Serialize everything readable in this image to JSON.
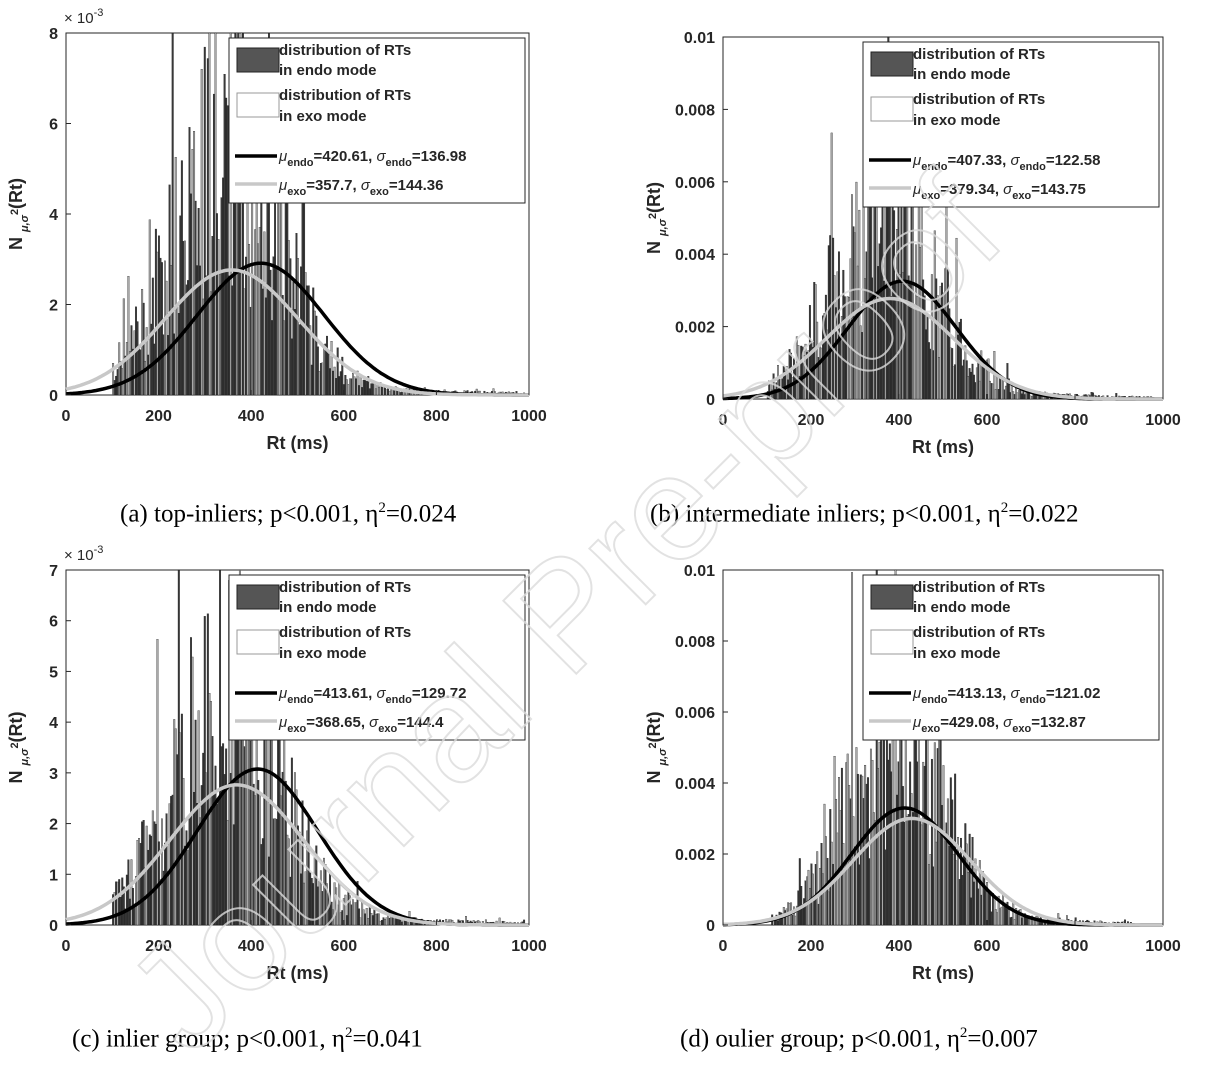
{
  "watermark": "Journal Pre-proof",
  "chart_data": [
    {
      "type": "bar",
      "panel_id": "a",
      "caption": {
        "prefix": "(a) top-inliers; p<0.001, η",
        "sup": "2",
        "suffix": "=0.024"
      },
      "xlabel": "Rt (ms)",
      "ylabel": "N",
      "ylabel_sub": "μ,σ",
      "ylabel_sup": "2",
      "ylabel_tail": "(Rt)",
      "xlim": [
        0,
        1000
      ],
      "ylim": [
        0,
        0.008
      ],
      "xticks": [
        0,
        200,
        400,
        600,
        800,
        1000
      ],
      "yticks": [
        0,
        0.002,
        0.004,
        0.006,
        0.008
      ],
      "ytick_labels": [
        "0",
        "2",
        "4",
        "6",
        "8"
      ],
      "y_exponent": "× 10",
      "y_exponent_power": "-3",
      "legend": [
        "distribution of RTs",
        "in endo mode",
        "distribution of RTs",
        "in exo mode",
        "=420.61,",
        "=136.98",
        "=357.7,",
        "=144.36"
      ],
      "legend_names": {
        "mu": "μ",
        "sigma": "σ",
        "endo": "endo",
        "exo": "exo"
      },
      "series": [
        {
          "name": "endo normal fit",
          "mu": 420.61,
          "sigma": 136.98
        },
        {
          "name": "exo normal fit",
          "mu": 357.7,
          "sigma": 144.36
        }
      ],
      "hist_center": 340,
      "hist_spread": 115,
      "hist_min": 100,
      "hist_max": 990,
      "hist_peak": 0.0058,
      "seed": 11
    },
    {
      "type": "bar",
      "panel_id": "b",
      "caption": {
        "prefix": "(b) intermediate inliers; p<0.001, η",
        "sup": "2",
        "suffix": "=0.022"
      },
      "xlabel": "Rt (ms)",
      "ylabel": "N",
      "ylabel_sub": "μ,σ",
      "ylabel_sup": "2",
      "ylabel_tail": "(Rt)",
      "xlim": [
        0,
        1000
      ],
      "ylim": [
        0,
        0.01
      ],
      "xticks": [
        0,
        200,
        400,
        600,
        800,
        1000
      ],
      "yticks": [
        0,
        0.002,
        0.004,
        0.006,
        0.008,
        0.01
      ],
      "ytick_labels": [
        "0",
        "0.002",
        "0.004",
        "0.006",
        "0.008",
        "0.01"
      ],
      "y_exponent": "",
      "y_exponent_power": "",
      "legend": [
        "distribution of RTs",
        " in endo mode",
        "distribution of RTs",
        "in exo mode",
        "=407.33,",
        "=122.58",
        "=379.34,",
        "=143.75"
      ],
      "legend_names": {
        "mu": "μ",
        "sigma": "σ",
        "endo": "endo",
        "exo": "exo"
      },
      "series": [
        {
          "name": "endo normal fit",
          "mu": 407.33,
          "sigma": 122.58
        },
        {
          "name": "exo normal fit",
          "mu": 379.34,
          "sigma": 143.75
        }
      ],
      "hist_center": 360,
      "hist_spread": 115,
      "hist_min": 100,
      "hist_max": 980,
      "hist_peak": 0.0055,
      "seed": 23
    },
    {
      "type": "bar",
      "panel_id": "c",
      "caption": {
        "prefix": "(c) inlier group; p<0.001, η",
        "sup": "2",
        "suffix": "=0.041"
      },
      "xlabel": "Rt (ms)",
      "ylabel": "N",
      "ylabel_sub": "μ,σ",
      "ylabel_sup": "2",
      "ylabel_tail": "(Rt)",
      "xlim": [
        0,
        1000
      ],
      "ylim": [
        0,
        0.007
      ],
      "xticks": [
        0,
        200,
        400,
        600,
        800,
        1000
      ],
      "yticks": [
        0,
        0.001,
        0.002,
        0.003,
        0.004,
        0.005,
        0.006,
        0.007
      ],
      "ytick_labels": [
        "0",
        "1",
        "2",
        "3",
        "4",
        "5",
        "6",
        "7"
      ],
      "y_exponent": "× 10",
      "y_exponent_power": "-3",
      "legend": [
        "distribution of RTs",
        " in endo mode",
        "distribution of RTs",
        "in exo mode",
        "=413.61,",
        "=129.72",
        "=368.65,",
        "=144.4"
      ],
      "legend_names": {
        "mu": "μ",
        "sigma": "σ",
        "endo": "endo",
        "exo": "exo"
      },
      "series": [
        {
          "name": "endo normal fit",
          "mu": 413.61,
          "sigma": 129.72
        },
        {
          "name": "exo normal fit",
          "mu": 368.65,
          "sigma": 144.4
        }
      ],
      "hist_center": 340,
      "hist_spread": 115,
      "hist_min": 100,
      "hist_max": 990,
      "hist_peak": 0.0048,
      "seed": 37
    },
    {
      "type": "bar",
      "panel_id": "d",
      "caption": {
        "prefix": "(d) oulier group; p<0.001, η",
        "sup": "2",
        "suffix": "=0.007"
      },
      "xlabel": "Rt (ms)",
      "ylabel": "N",
      "ylabel_sub": "μ,σ",
      "ylabel_sup": "2",
      "ylabel_tail": "(Rt)",
      "xlim": [
        0,
        1000
      ],
      "ylim": [
        0,
        0.01
      ],
      "xticks": [
        0,
        200,
        400,
        600,
        800,
        1000
      ],
      "yticks": [
        0,
        0.002,
        0.004,
        0.006,
        0.008,
        0.01
      ],
      "ytick_labels": [
        "0",
        "0.002",
        "0.004",
        "0.006",
        "0.008",
        "0.01"
      ],
      "y_exponent": "",
      "y_exponent_power": "",
      "legend": [
        "distribution of RTs",
        "in endo mode",
        "distribution of RTs",
        "in exo mode",
        "=413.13,",
        "=121.02",
        "=429.08,",
        "=132.87"
      ],
      "legend_names": {
        "mu": "μ",
        "sigma": "σ",
        "endo": "endo",
        "exo": "exo"
      },
      "series": [
        {
          "name": "endo normal fit",
          "mu": 413.13,
          "sigma": 121.02
        },
        {
          "name": "exo normal fit",
          "mu": 429.08,
          "sigma": 132.87
        }
      ],
      "hist_center": 390,
      "hist_spread": 110,
      "hist_min": 110,
      "hist_max": 940,
      "hist_peak": 0.0058,
      "seed": 53
    }
  ],
  "colors": {
    "endo_bar": "#3a3a3a",
    "exo_bar": "#a9a9a9",
    "endo_line": "#000000",
    "exo_line": "#c8c8c8",
    "watermark": "#e0e0e0"
  }
}
